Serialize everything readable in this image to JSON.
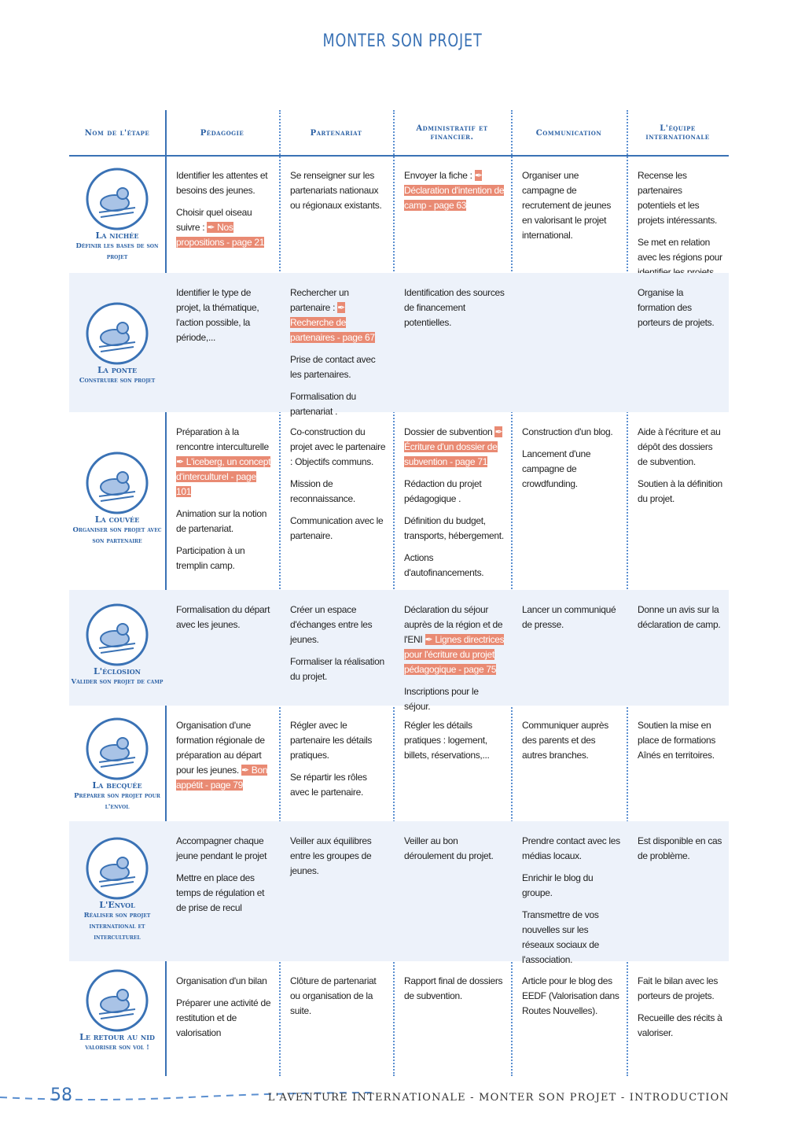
{
  "title": "MONTER SON PROJET",
  "table": {
    "headers": [
      "Nom de l'étape",
      "Pédagogie",
      "Partenariat",
      "Administratif et financier.",
      "Communication",
      "L'équipe internationale"
    ],
    "rows": [
      {
        "name": "La nichée",
        "subtitle": "Définir les bases de son projet",
        "cells": [
          [
            "Identifier les attentes et besoins des jeunes.",
            {
              "text": "Choisir quel oiseau suivre :",
              "link": "Nos propositions - page 21"
            }
          ],
          [
            "Se renseigner sur les partenariats nationaux ou régionaux existants."
          ],
          [
            {
              "text": "Envoyer la fiche :",
              "link": "Déclaration d'intention de camp - page 63"
            }
          ],
          [
            "Organiser une campagne de recrutement de jeunes en valorisant le projet international."
          ],
          [
            "Recense les partenaires potentiels et les projets intéressants.",
            "Se met en relation avec les régions pour identifier les projets."
          ]
        ]
      },
      {
        "name": "La ponte",
        "subtitle": "Construire son projet",
        "cells": [
          [
            "Identifier le type de projet, la thématique, l'action possible, la période,..."
          ],
          [
            {
              "text": "Rechercher un partenaire :",
              "link": "Recherche de partenaires - page 67"
            },
            "Prise de contact avec les partenaires.",
            "Formalisation du partenariat ."
          ],
          [
            "Identification des sources de financement potentielles."
          ],
          [],
          [
            "Organise la formation des porteurs de projets."
          ]
        ]
      },
      {
        "name": "La couvée",
        "subtitle": "Organiser son projet avec son partenaire",
        "cells": [
          [
            {
              "text": "Préparation à la rencontre interculturelle",
              "link": "L'iceberg, un concept d'interculturel - page 101"
            },
            "Animation sur la notion de partenariat.",
            "Participation à un tremplin camp."
          ],
          [
            "Co-construction du projet avec le partenaire : Objectifs communs.",
            "Mission de reconnaissance.",
            "Communication avec le partenaire."
          ],
          [
            {
              "text": "Dossier de subvention",
              "link": "Écriture d'un dossier de subvention - page 71"
            },
            "Rédaction du projet pédagogique .",
            "Définition du budget, transports, hébergement.",
            "Actions d'autofinancements."
          ],
          [
            "Construction d'un blog.",
            "Lancement d'une campagne de crowdfunding."
          ],
          [
            "Aide à l'écriture et au dépôt des dossiers de subvention.",
            "Soutien à la définition du projet."
          ]
        ]
      },
      {
        "name": "L'éclosion",
        "subtitle": "Valider son projet de camp",
        "cells": [
          [
            "Formalisation du départ avec les jeunes."
          ],
          [
            "Créer un espace d'échanges entre les jeunes.",
            "Formaliser la réalisation du projet."
          ],
          [
            {
              "text": "Déclaration du séjour auprès de la région et de l'ENI",
              "link": "Lignes directrices pour l'écriture du projet pédagogique - page 75"
            },
            "Inscriptions pour le séjour."
          ],
          [
            "Lancer un communiqué de presse."
          ],
          [
            "Donne un avis sur la déclaration de camp."
          ]
        ]
      },
      {
        "name": "La becquée",
        "subtitle": "Préparer son projet pour l'envol",
        "cells": [
          [
            {
              "text": "Organisation d'une formation régionale de préparation au départ pour les jeunes.",
              "link": "Bon appétit - page 79"
            }
          ],
          [
            "Régler avec le partenaire les détails pratiques.",
            "Se répartir les rôles avec le partenaire."
          ],
          [
            "Régler les détails pratiques : logement, billets, réservations,..."
          ],
          [
            "Communiquer auprès des parents et des autres branches."
          ],
          [
            "Soutien la mise en place de formations Aînés en territoires."
          ]
        ]
      },
      {
        "name": "L'Envol",
        "subtitle": "Réaliser son projet international et interculturel",
        "cells": [
          [
            "Accompagner chaque jeune pendant le projet",
            "Mettre en place des temps de régulation et de prise de recul"
          ],
          [
            "Veiller aux équilibres entre les groupes de jeunes."
          ],
          [
            "Veiller au bon déroulement du projet."
          ],
          [
            "Prendre contact avec les médias locaux.",
            "Enrichir le blog du groupe.",
            "Transmettre de vos nouvelles sur les réseaux sociaux de l'association."
          ],
          [
            "Est disponible en cas de problème."
          ]
        ]
      },
      {
        "name": "Le retour au nid",
        "subtitle": "valoriser son vol !",
        "cells": [
          [
            "Organisation d'un bilan",
            "Préparer une activité de restitution et de valorisation"
          ],
          [
            "Clôture de partenariat ou organisation de la suite."
          ],
          [
            "Rapport final de dossiers de subvention."
          ],
          [
            "Article pour le blog des EEDF (Valorisation dans Routes Nouvelles)."
          ],
          [
            "Fait le bilan avec les porteurs de projets.",
            "Recueille des récits à valoriser."
          ]
        ]
      }
    ]
  },
  "footer": {
    "page": "58",
    "text": "L'AVENTURE INTERNATIONALE - MONTER SON PROJET - INTRODUCTION"
  }
}
